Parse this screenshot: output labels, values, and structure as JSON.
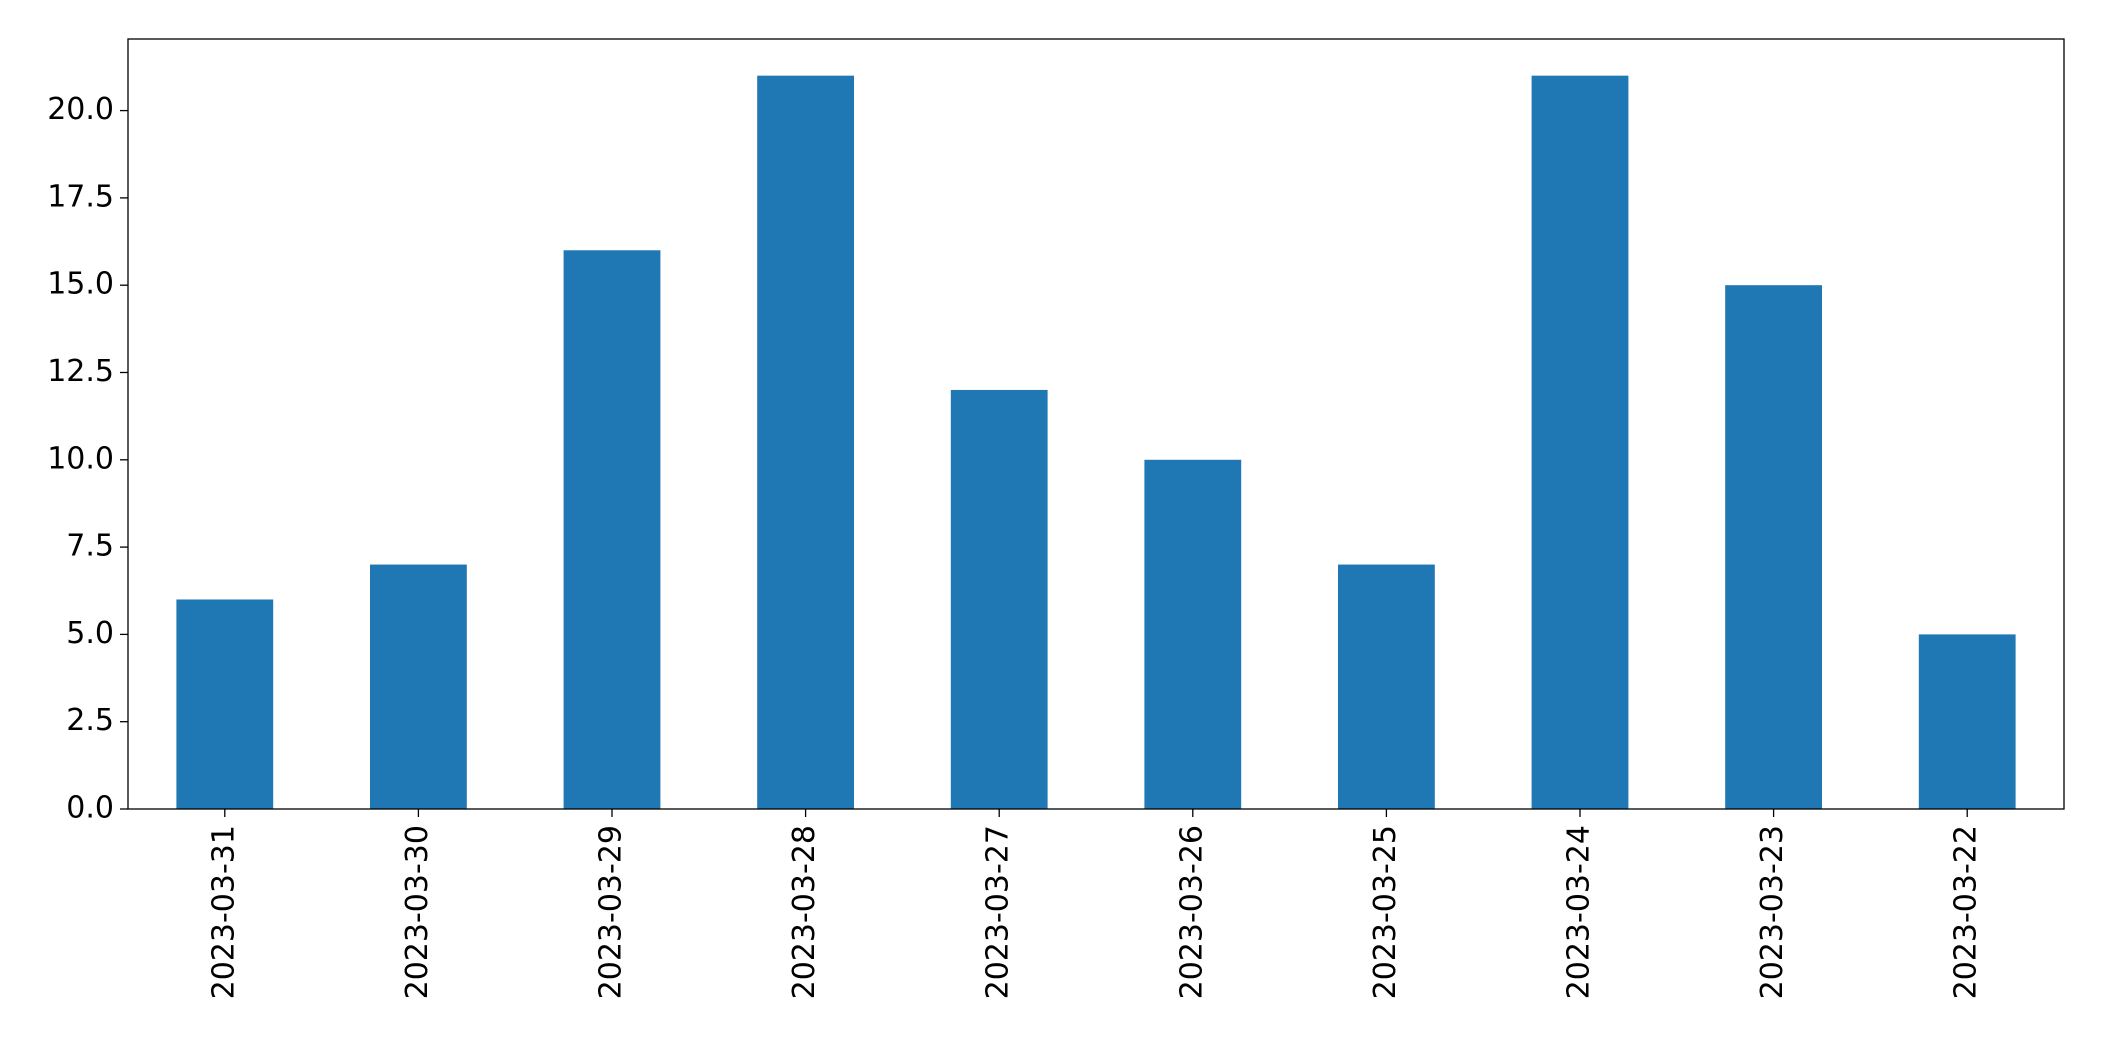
{
  "chart_data": {
    "type": "bar",
    "categories": [
      "2023-03-31",
      "2023-03-30",
      "2023-03-29",
      "2023-03-28",
      "2023-03-27",
      "2023-03-26",
      "2023-03-25",
      "2023-03-24",
      "2023-03-23",
      "2023-03-22"
    ],
    "values": [
      6,
      7,
      16,
      21,
      12,
      10,
      7,
      21,
      15,
      5
    ],
    "color": "#1f77b4",
    "ylim": [
      0,
      22.05
    ],
    "yticks": [
      {
        "value": 0,
        "label": "0.0"
      },
      2.5,
      {
        "value": 5,
        "label": "5.0"
      },
      7.5,
      {
        "value": 10,
        "label": "10.0"
      },
      12.5,
      {
        "value": 15,
        "label": "15.0"
      },
      17.5,
      {
        "value": 20,
        "label": "20.0"
      }
    ],
    "grid": false
  }
}
